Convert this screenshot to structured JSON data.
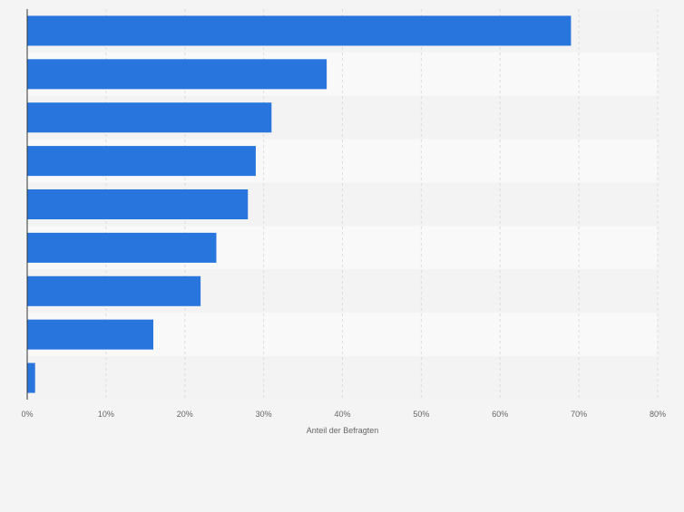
{
  "colors": {
    "background": "#f4f4f4",
    "band_light": "#f9f9f9",
    "band_dark": "#f3f3f3",
    "bar": "#2876dd",
    "grid": "#dcdcdc",
    "axis_line": "#333333",
    "tick_text": "#666666"
  },
  "chart_data": {
    "type": "bar",
    "orientation": "horizontal",
    "categories": [
      "",
      "",
      "",
      "",
      "",
      "",
      "",
      "",
      ""
    ],
    "values": [
      69,
      38,
      31,
      29,
      28,
      24,
      22,
      16,
      1
    ],
    "xlabel": "Anteil der Befragten",
    "xlim": [
      0,
      80
    ],
    "xticks": [
      0,
      10,
      20,
      30,
      40,
      50,
      60,
      70,
      80
    ],
    "xtick_labels": [
      "0%",
      "10%",
      "20%",
      "30%",
      "40%",
      "50%",
      "60%",
      "70%",
      "80%"
    ],
    "grid": true,
    "legend": false
  }
}
